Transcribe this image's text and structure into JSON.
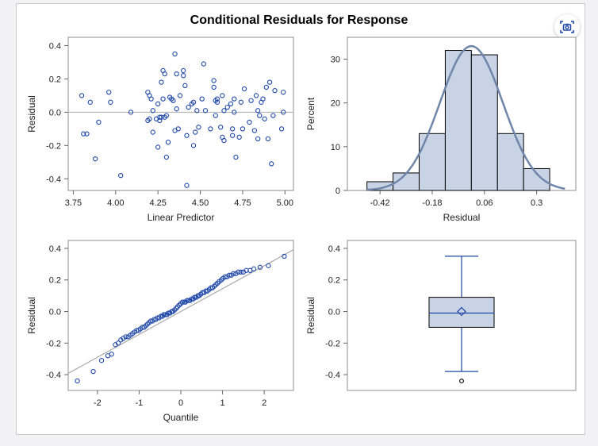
{
  "title": "Conditional Residuals for Response",
  "toolbar": {
    "screenshot_icon": "camera-focus-icon"
  },
  "colors": {
    "marker": "#1f47a8",
    "hist_fill": "#c8d3e5",
    "curve": "#6f86aa",
    "ref_line": "#aaaaaa"
  },
  "chart_data": [
    {
      "type": "scatter",
      "panel": "residual-vs-predictor",
      "title": "",
      "xlabel": "Linear Predictor",
      "ylabel": "Residual",
      "xlim": [
        3.72,
        5.05
      ],
      "ylim": [
        -0.47,
        0.45
      ],
      "xticks": [
        "3.75",
        "4.00",
        "4.25",
        "4.50",
        "4.75",
        "5.00"
      ],
      "yticks": [
        "-0.4",
        "-0.2",
        "0.0",
        "0.2",
        "0.4"
      ],
      "reference_y": 0,
      "x": [
        3.8,
        3.81,
        3.83,
        3.85,
        3.88,
        3.9,
        3.96,
        3.97,
        4.03,
        4.09,
        4.19,
        4.19,
        4.2,
        4.2,
        4.21,
        4.22,
        4.22,
        4.24,
        4.25,
        4.25,
        4.26,
        4.26,
        4.27,
        4.27,
        4.28,
        4.28,
        4.29,
        4.29,
        4.3,
        4.3,
        4.31,
        4.32,
        4.33,
        4.34,
        4.35,
        4.35,
        4.36,
        4.36,
        4.37,
        4.38,
        4.4,
        4.4,
        4.41,
        4.42,
        4.42,
        4.43,
        4.45,
        4.46,
        4.46,
        4.47,
        4.48,
        4.49,
        4.51,
        4.52,
        4.53,
        4.56,
        4.58,
        4.58,
        4.59,
        4.59,
        4.6,
        4.6,
        4.62,
        4.63,
        4.63,
        4.64,
        4.64,
        4.66,
        4.68,
        4.69,
        4.69,
        4.7,
        4.7,
        4.71,
        4.73,
        4.74,
        4.75,
        4.76,
        4.79,
        4.8,
        4.82,
        4.83,
        4.84,
        4.84,
        4.85,
        4.86,
        4.87,
        4.88,
        4.89,
        4.9,
        4.91,
        4.92,
        4.93,
        4.94,
        4.98,
        4.99,
        4.99
      ],
      "y": [
        0.1,
        -0.13,
        -0.13,
        0.06,
        -0.28,
        -0.06,
        0.12,
        0.06,
        -0.38,
        0.0,
        -0.05,
        0.12,
        -0.04,
        0.1,
        0.08,
        -0.12,
        0.01,
        -0.04,
        -0.21,
        0.05,
        -0.03,
        -0.05,
        0.18,
        -0.03,
        0.08,
        0.25,
        -0.03,
        0.23,
        -0.27,
        -0.02,
        -0.18,
        0.09,
        0.08,
        0.07,
        0.35,
        -0.11,
        0.23,
        0.02,
        -0.1,
        0.1,
        0.25,
        0.22,
        0.16,
        -0.44,
        -0.14,
        0.03,
        0.05,
        0.06,
        -0.2,
        -0.12,
        0.01,
        -0.09,
        0.08,
        0.29,
        0.01,
        -0.1,
        0.19,
        0.15,
        -0.02,
        0.07,
        0.06,
        0.08,
        -0.09,
        0.1,
        -0.15,
        -0.17,
        0.01,
        0.03,
        0.05,
        -0.1,
        -0.14,
        0.08,
        0.0,
        -0.27,
        -0.15,
        0.06,
        -0.1,
        0.14,
        -0.06,
        0.07,
        -0.11,
        0.1,
        -0.16,
        0.01,
        -0.02,
        0.06,
        0.08,
        -0.04,
        0.15,
        -0.16,
        0.18,
        -0.31,
        -0.02,
        0.13,
        -0.1,
        0.12,
        0.0
      ]
    },
    {
      "type": "bar",
      "panel": "residual-histogram",
      "title": "",
      "xlabel": "Residual",
      "ylabel": "Percent",
      "xlim": [
        -0.57,
        0.48
      ],
      "ylim": [
        0,
        35
      ],
      "xticks": [
        "-0.42",
        "-0.18",
        "0.06",
        "0.3"
      ],
      "yticks": [
        "0",
        "10",
        "20",
        "30"
      ],
      "bin_edges": [
        -0.48,
        -0.36,
        -0.24,
        -0.12,
        0.0,
        0.12,
        0.24,
        0.36
      ],
      "values": [
        2,
        4,
        13,
        32,
        31,
        13,
        5
      ],
      "density_curve": {
        "type": "normal",
        "mean": 0.0,
        "sd": 0.145,
        "peak_percent": 33
      }
    },
    {
      "type": "scatter",
      "panel": "qq-plot",
      "title": "",
      "xlabel": "Quantile",
      "ylabel": "Residual",
      "xlim": [
        -2.7,
        2.7
      ],
      "ylim": [
        -0.5,
        0.45
      ],
      "xticks": [
        "-2",
        "-1",
        "0",
        "1",
        "2"
      ],
      "yticks": [
        "-0.4",
        "-0.2",
        "0.0",
        "0.2",
        "0.4"
      ],
      "reference_line": {
        "intercept": 0.0,
        "slope": 0.145
      },
      "x": [
        -2.48,
        -2.1,
        -1.9,
        -1.75,
        -1.66,
        -1.57,
        -1.5,
        -1.44,
        -1.38,
        -1.32,
        -1.26,
        -1.21,
        -1.16,
        -1.11,
        -1.06,
        -1.01,
        -0.97,
        -0.92,
        -0.88,
        -0.84,
        -0.8,
        -0.76,
        -0.72,
        -0.68,
        -0.64,
        -0.6,
        -0.56,
        -0.52,
        -0.48,
        -0.44,
        -0.41,
        -0.37,
        -0.33,
        -0.3,
        -0.26,
        -0.22,
        -0.19,
        -0.15,
        -0.11,
        -0.08,
        -0.04,
        0.0,
        0.04,
        0.08,
        0.11,
        0.15,
        0.19,
        0.22,
        0.26,
        0.3,
        0.33,
        0.37,
        0.41,
        0.44,
        0.48,
        0.52,
        0.56,
        0.6,
        0.64,
        0.68,
        0.72,
        0.76,
        0.8,
        0.84,
        0.88,
        0.92,
        0.97,
        1.01,
        1.06,
        1.11,
        1.16,
        1.21,
        1.26,
        1.32,
        1.38,
        1.44,
        1.5,
        1.57,
        1.66,
        1.75,
        1.9,
        2.1,
        2.48
      ],
      "y": [
        -0.44,
        -0.38,
        -0.31,
        -0.28,
        -0.27,
        -0.21,
        -0.2,
        -0.18,
        -0.17,
        -0.16,
        -0.16,
        -0.15,
        -0.14,
        -0.13,
        -0.12,
        -0.12,
        -0.11,
        -0.1,
        -0.1,
        -0.09,
        -0.08,
        -0.07,
        -0.06,
        -0.06,
        -0.05,
        -0.05,
        -0.04,
        -0.04,
        -0.03,
        -0.03,
        -0.02,
        -0.02,
        -0.02,
        -0.01,
        -0.01,
        0.0,
        0.0,
        0.01,
        0.02,
        0.03,
        0.04,
        0.05,
        0.06,
        0.06,
        0.06,
        0.07,
        0.07,
        0.07,
        0.08,
        0.08,
        0.09,
        0.09,
        0.1,
        0.1,
        0.11,
        0.12,
        0.12,
        0.13,
        0.13,
        0.14,
        0.15,
        0.15,
        0.16,
        0.17,
        0.18,
        0.19,
        0.2,
        0.21,
        0.22,
        0.22,
        0.23,
        0.23,
        0.24,
        0.24,
        0.25,
        0.25,
        0.25,
        0.26,
        0.26,
        0.27,
        0.28,
        0.29,
        0.35
      ]
    },
    {
      "type": "box",
      "panel": "residual-boxplot",
      "title": "",
      "xlabel": "",
      "ylabel": "Residual",
      "ylim": [
        -0.5,
        0.45
      ],
      "yticks": [
        "-0.4",
        "-0.2",
        "0.0",
        "0.2",
        "0.4"
      ],
      "whisker_low": -0.38,
      "q1": -0.1,
      "median": -0.01,
      "mean": 0.0,
      "q3": 0.09,
      "whisker_high": 0.35,
      "outliers": [
        -0.44
      ]
    }
  ]
}
